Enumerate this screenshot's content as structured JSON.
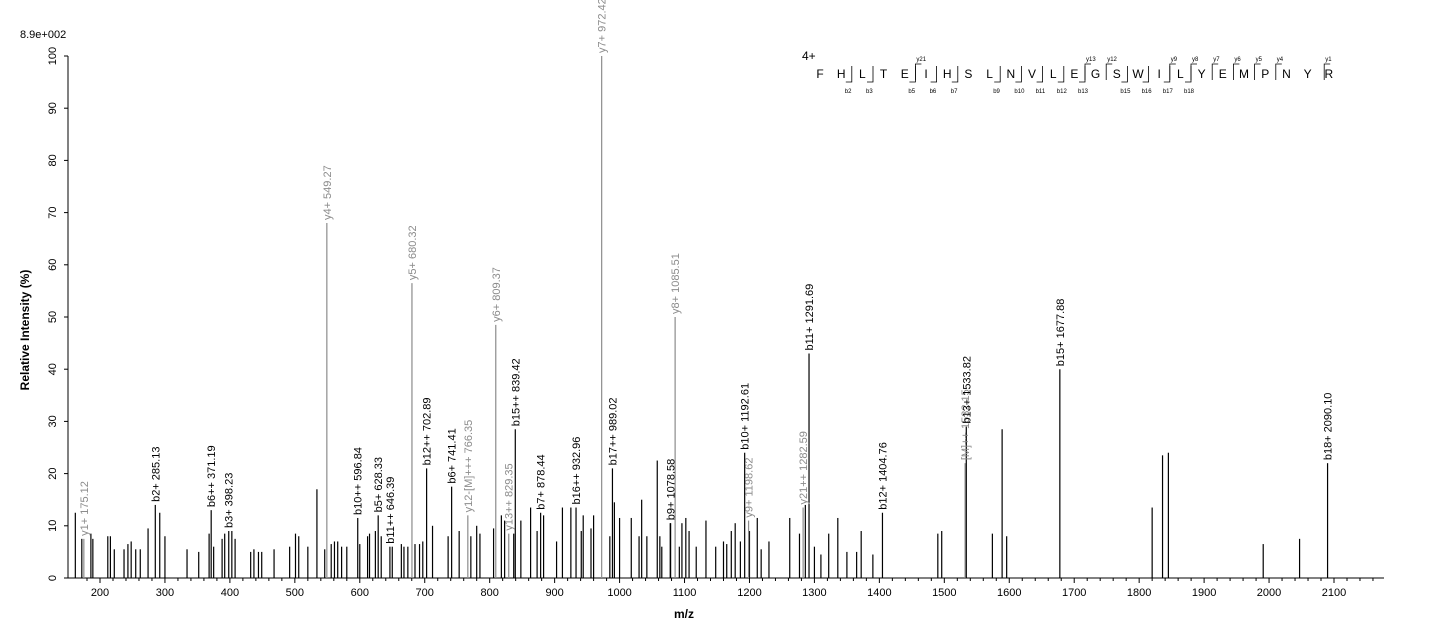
{
  "chart_data": {
    "type": "bar",
    "scale_label": "8.9e+002",
    "xlabel": "m/z",
    "ylabel": "Relative   Intensity (%)",
    "xlim": [
      160,
      2170
    ],
    "ylim": [
      0,
      100
    ],
    "x_ticks": [
      200,
      300,
      400,
      500,
      600,
      700,
      800,
      900,
      1000,
      1100,
      1200,
      1300,
      1400,
      1500,
      1600,
      1700,
      1800,
      1900,
      2000,
      2100
    ],
    "y_ticks": [
      0,
      10,
      20,
      30,
      40,
      50,
      60,
      70,
      80,
      90,
      100
    ],
    "colors": {
      "b_ion": "#000000",
      "y_ion": "#8c8c8c"
    },
    "peaks": [
      {
        "mz": 162,
        "intensity": 12.5
      },
      {
        "mz": 172,
        "intensity": 7.5
      },
      {
        "mz": 186,
        "intensity": 8.5
      },
      {
        "mz": 189,
        "intensity": 7.5
      },
      {
        "mz": 212,
        "intensity": 8
      },
      {
        "mz": 216,
        "intensity": 8
      },
      {
        "mz": 222,
        "intensity": 5.5
      },
      {
        "mz": 237,
        "intensity": 5.5
      },
      {
        "mz": 243,
        "intensity": 6.5
      },
      {
        "mz": 248,
        "intensity": 7
      },
      {
        "mz": 255,
        "intensity": 5.5
      },
      {
        "mz": 262,
        "intensity": 5.5
      },
      {
        "mz": 274,
        "intensity": 9.5
      },
      {
        "mz": 292,
        "intensity": 12.5
      },
      {
        "mz": 300,
        "intensity": 8
      },
      {
        "mz": 334,
        "intensity": 5.5
      },
      {
        "mz": 352,
        "intensity": 5
      },
      {
        "mz": 368,
        "intensity": 8.5
      },
      {
        "mz": 375,
        "intensity": 6
      },
      {
        "mz": 388,
        "intensity": 7.5
      },
      {
        "mz": 392,
        "intensity": 8.5
      },
      {
        "mz": 403,
        "intensity": 9
      },
      {
        "mz": 408,
        "intensity": 7.5
      },
      {
        "mz": 432,
        "intensity": 5
      },
      {
        "mz": 437,
        "intensity": 5.5
      },
      {
        "mz": 444,
        "intensity": 5
      },
      {
        "mz": 449,
        "intensity": 5
      },
      {
        "mz": 468,
        "intensity": 5.5
      },
      {
        "mz": 492,
        "intensity": 6
      },
      {
        "mz": 501,
        "intensity": 8.5
      },
      {
        "mz": 506,
        "intensity": 8
      },
      {
        "mz": 520,
        "intensity": 6
      },
      {
        "mz": 534,
        "intensity": 17
      },
      {
        "mz": 546,
        "intensity": 5.5
      },
      {
        "mz": 556,
        "intensity": 6.5
      },
      {
        "mz": 561,
        "intensity": 7
      },
      {
        "mz": 566,
        "intensity": 7
      },
      {
        "mz": 572,
        "intensity": 6
      },
      {
        "mz": 580,
        "intensity": 6
      },
      {
        "mz": 600,
        "intensity": 6.5
      },
      {
        "mz": 612,
        "intensity": 8
      },
      {
        "mz": 615,
        "intensity": 8.5
      },
      {
        "mz": 624,
        "intensity": 9
      },
      {
        "mz": 633,
        "intensity": 8
      },
      {
        "mz": 650,
        "intensity": 6
      },
      {
        "mz": 664,
        "intensity": 6.5
      },
      {
        "mz": 668,
        "intensity": 6
      },
      {
        "mz": 674,
        "intensity": 6
      },
      {
        "mz": 685,
        "intensity": 6.5
      },
      {
        "mz": 692,
        "intensity": 6.5
      },
      {
        "mz": 697,
        "intensity": 7
      },
      {
        "mz": 712,
        "intensity": 10
      },
      {
        "mz": 736,
        "intensity": 8
      },
      {
        "mz": 753,
        "intensity": 9
      },
      {
        "mz": 771,
        "intensity": 8
      },
      {
        "mz": 780,
        "intensity": 10
      },
      {
        "mz": 785,
        "intensity": 8.5
      },
      {
        "mz": 806,
        "intensity": 9.5
      },
      {
        "mz": 818,
        "intensity": 12
      },
      {
        "mz": 823,
        "intensity": 11
      },
      {
        "mz": 837,
        "intensity": 8.5
      },
      {
        "mz": 848,
        "intensity": 11
      },
      {
        "mz": 863,
        "intensity": 13.5
      },
      {
        "mz": 873,
        "intensity": 9
      },
      {
        "mz": 883,
        "intensity": 12
      },
      {
        "mz": 903,
        "intensity": 7
      },
      {
        "mz": 912,
        "intensity": 13.5
      },
      {
        "mz": 925,
        "intensity": 13.5
      },
      {
        "mz": 941,
        "intensity": 9
      },
      {
        "mz": 944,
        "intensity": 12
      },
      {
        "mz": 956,
        "intensity": 9.5
      },
      {
        "mz": 960,
        "intensity": 12
      },
      {
        "mz": 985,
        "intensity": 8
      },
      {
        "mz": 992,
        "intensity": 14.5
      },
      {
        "mz": 1000,
        "intensity": 11.5
      },
      {
        "mz": 1018,
        "intensity": 11.5
      },
      {
        "mz": 1030,
        "intensity": 8
      },
      {
        "mz": 1034,
        "intensity": 15
      },
      {
        "mz": 1042,
        "intensity": 8
      },
      {
        "mz": 1058,
        "intensity": 22.5
      },
      {
        "mz": 1062,
        "intensity": 8
      },
      {
        "mz": 1065,
        "intensity": 6
      },
      {
        "mz": 1078,
        "intensity": 10.5
      },
      {
        "mz": 1092,
        "intensity": 6
      },
      {
        "mz": 1096,
        "intensity": 10.5
      },
      {
        "mz": 1102,
        "intensity": 11.5
      },
      {
        "mz": 1107,
        "intensity": 9
      },
      {
        "mz": 1118,
        "intensity": 6
      },
      {
        "mz": 1133,
        "intensity": 11
      },
      {
        "mz": 1148,
        "intensity": 6
      },
      {
        "mz": 1160,
        "intensity": 7
      },
      {
        "mz": 1165,
        "intensity": 6.5
      },
      {
        "mz": 1172,
        "intensity": 9
      },
      {
        "mz": 1178,
        "intensity": 10.5
      },
      {
        "mz": 1186,
        "intensity": 7
      },
      {
        "mz": 1200,
        "intensity": 9
      },
      {
        "mz": 1212,
        "intensity": 11.5
      },
      {
        "mz": 1218,
        "intensity": 5.5
      },
      {
        "mz": 1230,
        "intensity": 7
      },
      {
        "mz": 1262,
        "intensity": 11.5
      },
      {
        "mz": 1277,
        "intensity": 8.5
      },
      {
        "mz": 1286,
        "intensity": 14
      },
      {
        "mz": 1300,
        "intensity": 6
      },
      {
        "mz": 1310,
        "intensity": 4.5
      },
      {
        "mz": 1322,
        "intensity": 8.5
      },
      {
        "mz": 1336,
        "intensity": 11.5
      },
      {
        "mz": 1350,
        "intensity": 5
      },
      {
        "mz": 1365,
        "intensity": 5
      },
      {
        "mz": 1372,
        "intensity": 9
      },
      {
        "mz": 1390,
        "intensity": 4.5
      },
      {
        "mz": 1490,
        "intensity": 8.5
      },
      {
        "mz": 1496,
        "intensity": 9
      },
      {
        "mz": 1574,
        "intensity": 8.5
      },
      {
        "mz": 1589,
        "intensity": 28.5
      },
      {
        "mz": 1596,
        "intensity": 8
      },
      {
        "mz": 1820,
        "intensity": 13.5
      },
      {
        "mz": 1836,
        "intensity": 23.5
      },
      {
        "mz": 1845,
        "intensity": 24
      },
      {
        "mz": 1991,
        "intensity": 6.5
      },
      {
        "mz": 2047,
        "intensity": 7.5
      }
    ],
    "labeled_peaks": [
      {
        "mz": 175.12,
        "intensity": 7.5,
        "label": "y1+ 175.12",
        "ion": "y"
      },
      {
        "mz": 285.13,
        "intensity": 14,
        "label": "b2+ 285.13",
        "ion": "b"
      },
      {
        "mz": 371.19,
        "intensity": 13,
        "label": "b6++ 371.19",
        "ion": "b"
      },
      {
        "mz": 398.23,
        "intensity": 9,
        "label": "b3+ 398.23",
        "ion": "b"
      },
      {
        "mz": 549.27,
        "intensity": 68,
        "label": "y4+ 549.27",
        "ion": "y"
      },
      {
        "mz": 596.84,
        "intensity": 11.5,
        "label": "b10++ 596.84",
        "ion": "b"
      },
      {
        "mz": 628.33,
        "intensity": 12,
        "label": "b5+ 628.33",
        "ion": "b"
      },
      {
        "mz": 646.39,
        "intensity": 6,
        "label": "b11++ 646.39",
        "ion": "b"
      },
      {
        "mz": 680.32,
        "intensity": 56.5,
        "label": "y5+ 680.32",
        "ion": "y"
      },
      {
        "mz": 702.89,
        "intensity": 21,
        "label": "b12++ 702.89",
        "ion": "b"
      },
      {
        "mz": 741.41,
        "intensity": 17.5,
        "label": "b6+ 741.41",
        "ion": "b"
      },
      {
        "mz": 766.35,
        "intensity": 12,
        "label": "y12-[M]+++ 766.35",
        "ion": "y"
      },
      {
        "mz": 809.37,
        "intensity": 48.5,
        "label": "y6+ 809.37",
        "ion": "y"
      },
      {
        "mz": 829.35,
        "intensity": 8.5,
        "label": "y13++ 829.35",
        "ion": "y"
      },
      {
        "mz": 839.42,
        "intensity": 28.5,
        "label": "b15++ 839.42",
        "ion": "b"
      },
      {
        "mz": 878.44,
        "intensity": 12.5,
        "label": "b7+ 878.44",
        "ion": "b"
      },
      {
        "mz": 932.96,
        "intensity": 13.5,
        "label": "b16++ 932.96",
        "ion": "b"
      },
      {
        "mz": 972.42,
        "intensity": 100,
        "label": "y7+ 972.42",
        "ion": "y"
      },
      {
        "mz": 989.02,
        "intensity": 21,
        "label": "b17++ 989.02",
        "ion": "b"
      },
      {
        "mz": 1078.58,
        "intensity": 10.5,
        "label": "b9+ 1078.58",
        "ion": "b"
      },
      {
        "mz": 1085.51,
        "intensity": 50,
        "label": "y8+ 1085.51",
        "ion": "y"
      },
      {
        "mz": 1192.61,
        "intensity": 24,
        "label": "b10+ 1192.61",
        "ion": "b"
      },
      {
        "mz": 1198.62,
        "intensity": 11,
        "label": "y9+ 1198.62",
        "ion": "y"
      },
      {
        "mz": 1282.59,
        "intensity": 13.5,
        "label": "y21++ 1282.59",
        "ion": "y"
      },
      {
        "mz": 1291.69,
        "intensity": 43,
        "label": "b11+ 1291.69",
        "ion": "b"
      },
      {
        "mz": 1404.76,
        "intensity": 12.5,
        "label": "b12+ 1404.76",
        "ion": "b"
      },
      {
        "mz": 1532.0,
        "intensity": 22,
        "label": "[M]++ 1532.15",
        "ion": "y"
      },
      {
        "mz": 1533.82,
        "intensity": 29,
        "label": "b13+ 1533.82",
        "ion": "b"
      },
      {
        "mz": 1677.88,
        "intensity": 40,
        "label": "b15+ 1677.88",
        "ion": "b"
      },
      {
        "mz": 2090.1,
        "intensity": 22,
        "label": "b18+ 2090.10",
        "ion": "b"
      }
    ],
    "sequence": {
      "charge": "4+",
      "residues": [
        "F",
        "H",
        "L",
        "T",
        "E",
        "I",
        "H",
        "S",
        "L",
        "N",
        "V",
        "L",
        "E",
        "G",
        "S",
        "W",
        "I",
        "L",
        "Y",
        "E",
        "M",
        "P",
        "N",
        "Y",
        "R"
      ],
      "y_marks": [
        {
          "after": 5,
          "label": "y21"
        },
        {
          "after": 13,
          "label": "y13"
        },
        {
          "after": 14,
          "label": "y12"
        },
        {
          "after": 17,
          "label": "y9"
        },
        {
          "after": 18,
          "label": "y8"
        },
        {
          "after": 19,
          "label": "y7"
        },
        {
          "after": 20,
          "label": "y6"
        },
        {
          "after": 21,
          "label": "y5"
        },
        {
          "after": 22,
          "label": "y4"
        },
        {
          "after": 25,
          "label": "y1"
        }
      ],
      "b_marks": [
        {
          "after": 2,
          "label": "b2"
        },
        {
          "after": 3,
          "label": "b3"
        },
        {
          "after": 5,
          "label": "b5"
        },
        {
          "after": 6,
          "label": "b6"
        },
        {
          "after": 7,
          "label": "b7"
        },
        {
          "after": 9,
          "label": "b9"
        },
        {
          "after": 10,
          "label": "b10"
        },
        {
          "after": 11,
          "label": "b11"
        },
        {
          "after": 12,
          "label": "b12"
        },
        {
          "after": 13,
          "label": "b13"
        },
        {
          "after": 15,
          "label": "b15"
        },
        {
          "after": 16,
          "label": "b16"
        },
        {
          "after": 17,
          "label": "b17"
        },
        {
          "after": 18,
          "label": "b18"
        }
      ]
    }
  }
}
